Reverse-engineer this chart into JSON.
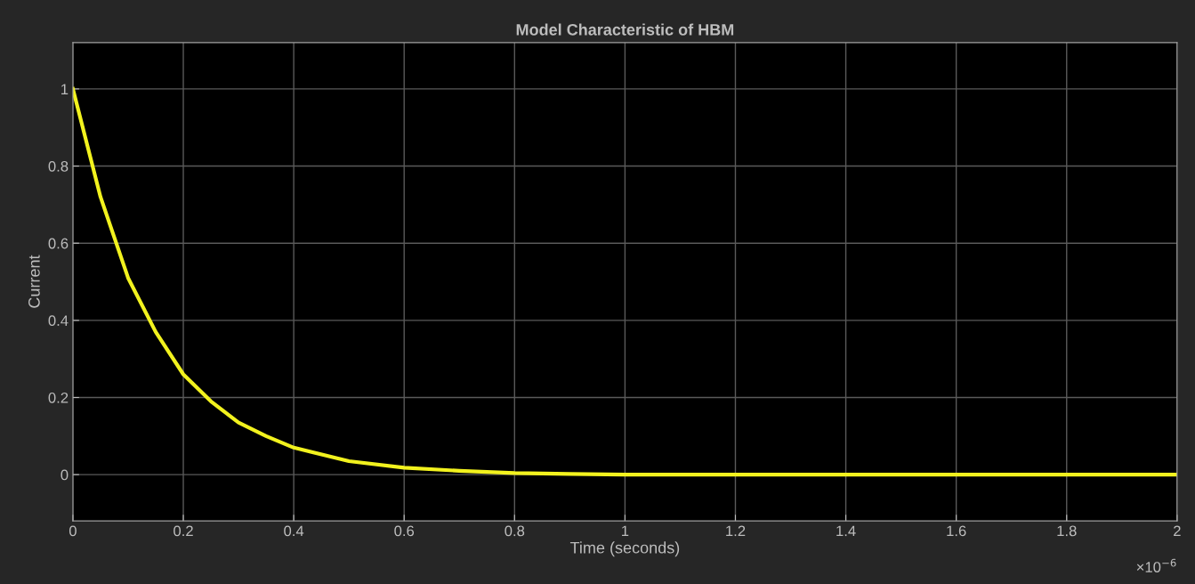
{
  "chart_data": {
    "type": "line",
    "title": "Model Characteristic of HBM",
    "xlabel": "Time (seconds)",
    "ylabel": "Current",
    "x": [
      0,
      0.05,
      0.1,
      0.15,
      0.2,
      0.25,
      0.3,
      0.35,
      0.4,
      0.5,
      0.6,
      0.7,
      0.8,
      0.9,
      1.0,
      1.2,
      1.4,
      1.6,
      1.8,
      2.0
    ],
    "series": [
      {
        "color": "#f2f21e",
        "values": [
          1,
          0.72,
          0.51,
          0.37,
          0.26,
          0.19,
          0.135,
          0.1,
          0.07,
          0.035,
          0.018,
          0.01,
          0.004,
          0.002,
          0,
          0,
          0,
          0,
          0,
          0
        ]
      }
    ],
    "xlim": [
      0,
      2
    ],
    "xticks": [
      0,
      0.2,
      0.4,
      0.6,
      0.8,
      1,
      1.2,
      1.4,
      1.6,
      1.8,
      2
    ],
    "ylim": [
      -0.12,
      1.12
    ],
    "yticks": [
      0,
      0.2,
      0.4,
      0.6,
      0.8,
      1
    ],
    "annotations": [
      "×10$^{−6}$"
    ],
    "grid": true,
    "marker": "none",
    "line_style": "solid"
  }
}
